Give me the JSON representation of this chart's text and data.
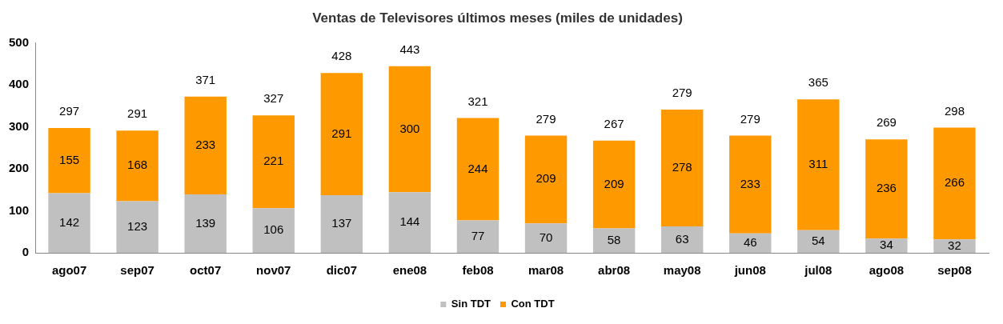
{
  "chart_data": {
    "type": "bar",
    "title": "Ventas de Televisores últimos meses (miles de unidades)",
    "stacked": true,
    "categories": [
      "ago07",
      "sep07",
      "oct07",
      "nov07",
      "dic07",
      "ene08",
      "feb08",
      "mar08",
      "abr08",
      "may08",
      "jun08",
      "jul08",
      "ago08",
      "sep08"
    ],
    "series": [
      {
        "name": "Sin TDT",
        "color": "#c0c0c0",
        "values": [
          142,
          123,
          139,
          106,
          137,
          144,
          77,
          70,
          58,
          63,
          46,
          54,
          34,
          32
        ]
      },
      {
        "name": "Con TDT",
        "color": "#ff9900",
        "values": [
          155,
          168,
          233,
          221,
          291,
          300,
          244,
          209,
          209,
          278,
          233,
          311,
          236,
          266
        ]
      }
    ],
    "totals": [
      "297",
      "291",
      "371",
      "327",
      "428",
      "443",
      "321",
      "279",
      "267",
      null,
      "279",
      "365",
      "269",
      "298"
    ],
    "annotations": [
      "279"
    ],
    "data_labels": true,
    "ylim": [
      0,
      500
    ],
    "yticks": [
      0,
      100,
      200,
      300,
      400,
      500
    ],
    "grid": false,
    "legend": "bottom"
  }
}
